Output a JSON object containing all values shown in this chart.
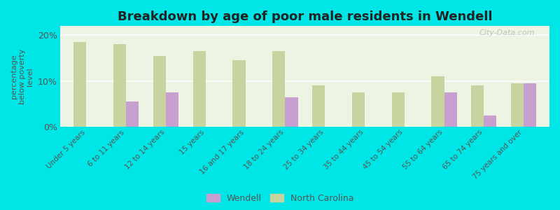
{
  "title": "Breakdown by age of poor male residents in Wendell",
  "ylabel": "percentage\nbelow poverty\nlevel",
  "background_color": "#00e5e5",
  "plot_bg_color": "#eef4e4",
  "categories": [
    "Under 5 years",
    "6 to 11 years",
    "12 to 14 years",
    "15 years",
    "16 and 17 years",
    "18 to 24 years",
    "25 to 34 years",
    "35 to 44 years",
    "45 to 54 years",
    "55 to 64 years",
    "65 to 74 years",
    "75 years and over"
  ],
  "wendell_values": [
    null,
    5.5,
    7.5,
    null,
    null,
    6.5,
    null,
    null,
    null,
    7.5,
    2.5,
    9.5
  ],
  "nc_values": [
    18.5,
    18.0,
    15.5,
    16.5,
    14.5,
    16.5,
    9.0,
    7.5,
    7.5,
    11.0,
    9.0,
    9.5
  ],
  "wendell_color": "#c8a0d0",
  "nc_color": "#c8d4a0",
  "ylim": [
    0,
    22
  ],
  "yticks": [
    0,
    10,
    20
  ],
  "ytick_labels": [
    "0%",
    "10%",
    "20%"
  ],
  "legend_labels": [
    "Wendell",
    "North Carolina"
  ],
  "watermark": "City-Data.com",
  "title_fontsize": 13,
  "bar_width": 0.32
}
